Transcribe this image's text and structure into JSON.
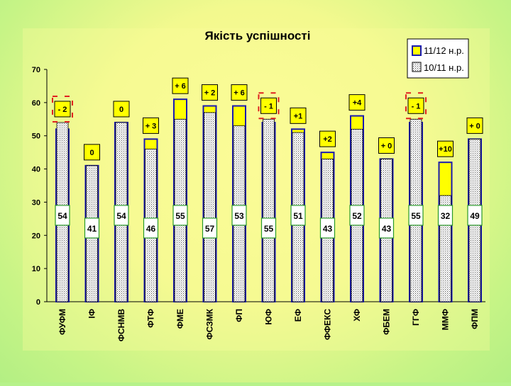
{
  "chart_data": {
    "type": "bar",
    "title": "Якість успішності",
    "ylim": [
      0,
      70
    ],
    "yticks": [
      0,
      10,
      20,
      30,
      40,
      50,
      60,
      70
    ],
    "grid": false,
    "legend_position": "top-right",
    "categories": [
      "ФУФМ",
      "ІФ",
      "ФСНМВ",
      "ФТФ",
      "ФМЕ",
      "ФСЗМК",
      "ФП",
      "ЮФ",
      "ЕФ",
      "ФФЕКС",
      "ХФ",
      "ФБЕМ",
      "ГГФ",
      "ММФ",
      "ФПМ"
    ],
    "series": [
      {
        "name": "11/12 н.р.",
        "values": [
          52,
          41,
          54,
          49,
          61,
          59,
          59,
          54,
          52,
          45,
          56,
          43,
          54,
          42,
          49
        ],
        "color": "#ffff00",
        "outline": "#1a1ab0"
      },
      {
        "name": "10/11 н.р.",
        "values": [
          54,
          41,
          54,
          46,
          55,
          57,
          53,
          55,
          51,
          43,
          52,
          43,
          55,
          32,
          49
        ],
        "color": "#ffffff",
        "pattern": "dotted"
      }
    ],
    "changes": [
      "- 2",
      "0",
      "0",
      "+ 3",
      "+ 6",
      "+ 2",
      "+ 6",
      "- 1",
      "+1",
      "+2",
      "+4",
      "+ 0",
      "- 1",
      "+10",
      "+ 0"
    ],
    "highlighted_negatives": [
      0,
      7,
      12
    ]
  },
  "colors": {
    "bar_new": "#ffff00",
    "bar_outline": "#1a1ab0",
    "value_box_fill": "#ffffff",
    "value_box_border": "#2a9a2a",
    "change_box_fill": "#ffff00",
    "negative_marker": "#e02020"
  }
}
